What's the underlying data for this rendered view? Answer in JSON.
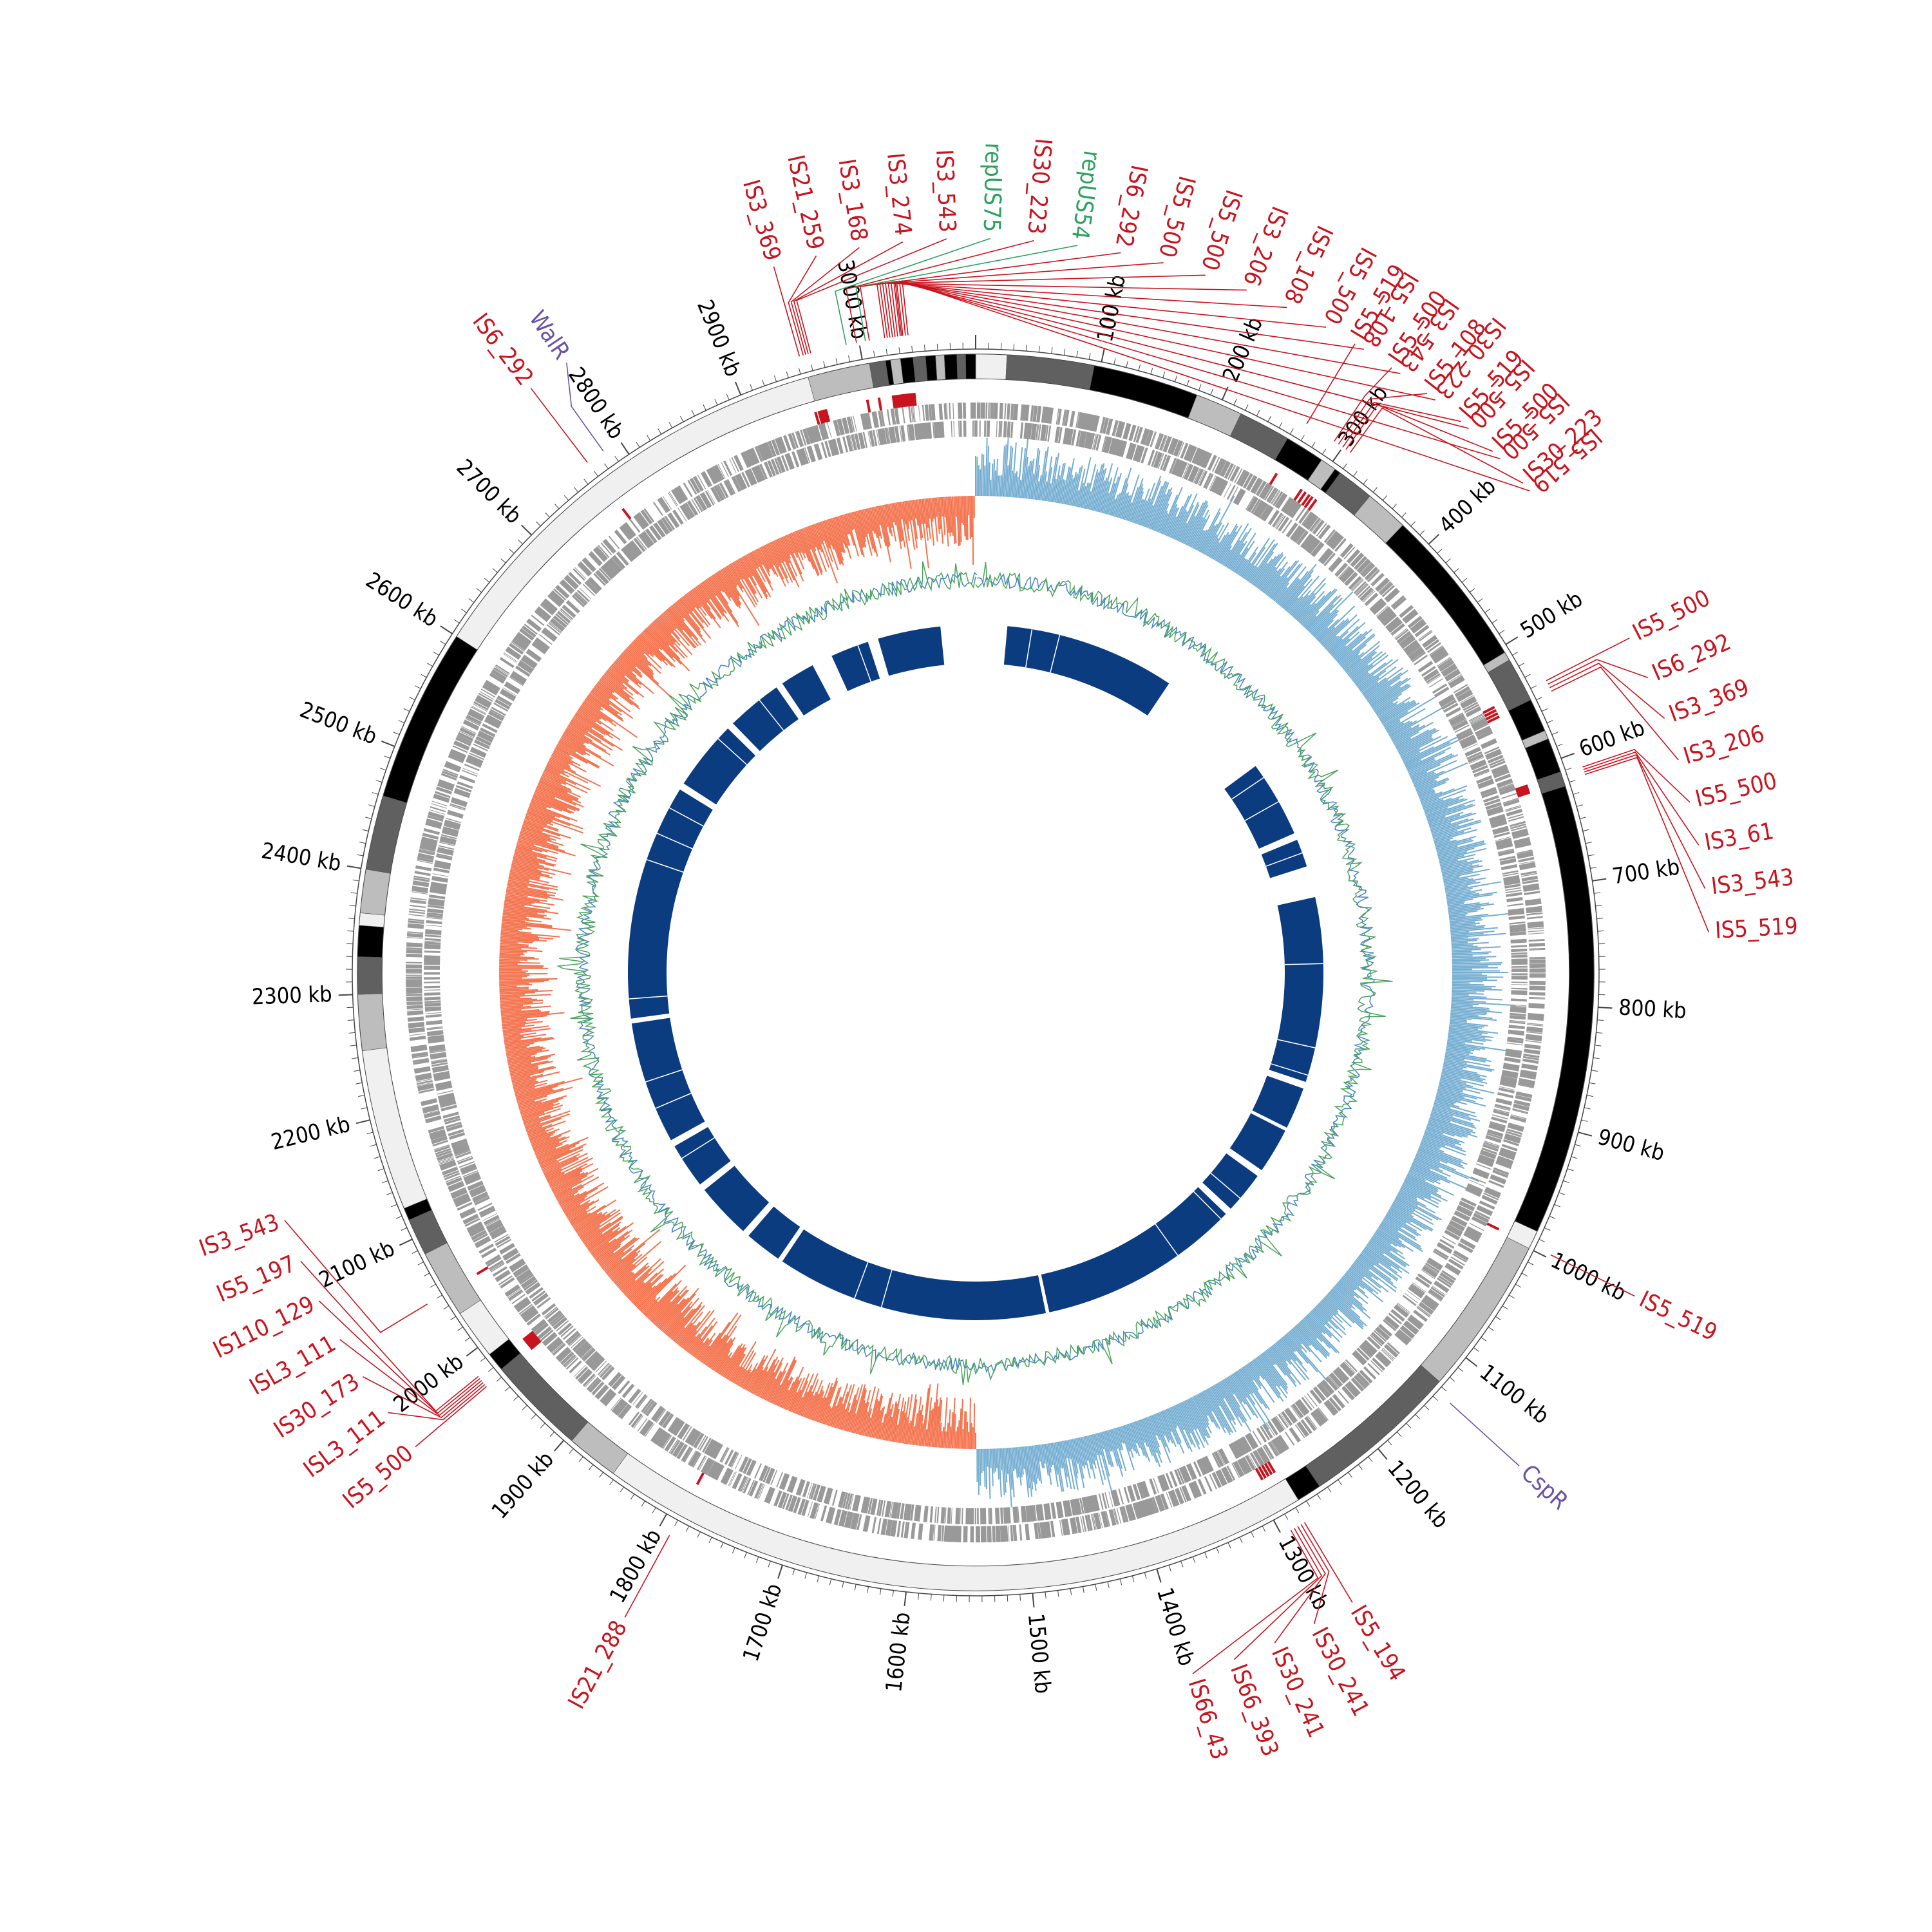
{
  "chart_data": {
    "type": "circular_genome_map",
    "genome_length_kb": 3090,
    "tick_labels": [
      "100 kb",
      "200 kb",
      "300 kb",
      "400 kb",
      "500 kb",
      "600 kb",
      "700 kb",
      "800 kb",
      "900 kb",
      "1000 kb",
      "1100 kb",
      "1200 kb",
      "1300 kb",
      "1400 kb",
      "1500 kb",
      "1600 kb",
      "1700 kb",
      "1800 kb",
      "1900 kb",
      "2000 kb",
      "2100 kb",
      "2200 kb",
      "2300 kb",
      "2400 kb",
      "2500 kb",
      "2600 kb",
      "2700 kb",
      "2800 kb",
      "2900 kb",
      "3000 kb"
    ],
    "contigs": [
      {
        "start": 0,
        "end": 25,
        "shade": "#f0f0f0"
      },
      {
        "start": 25,
        "end": 95,
        "shade": "#606060"
      },
      {
        "start": 95,
        "end": 180,
        "shade": "#000000"
      },
      {
        "start": 180,
        "end": 218,
        "shade": "#bdbdbd"
      },
      {
        "start": 218,
        "end": 260,
        "shade": "#606060"
      },
      {
        "start": 260,
        "end": 292,
        "shade": "#000000"
      },
      {
        "start": 292,
        "end": 305,
        "shade": "#bdbdbd"
      },
      {
        "start": 305,
        "end": 310,
        "shade": "#000000"
      },
      {
        "start": 310,
        "end": 340,
        "shade": "#606060"
      },
      {
        "start": 340,
        "end": 375,
        "shade": "#bdbdbd"
      },
      {
        "start": 375,
        "end": 505,
        "shade": "#000000"
      },
      {
        "start": 505,
        "end": 512,
        "shade": "#bdbdbd"
      },
      {
        "start": 512,
        "end": 548,
        "shade": "#606060"
      },
      {
        "start": 548,
        "end": 575,
        "shade": "#000000"
      },
      {
        "start": 575,
        "end": 582,
        "shade": "#bdbdbd"
      },
      {
        "start": 582,
        "end": 610,
        "shade": "#000000"
      },
      {
        "start": 610,
        "end": 622,
        "shade": "#606060"
      },
      {
        "start": 622,
        "end": 985,
        "shade": "#000000"
      },
      {
        "start": 985,
        "end": 1000,
        "shade": "#f0f0f0"
      },
      {
        "start": 1000,
        "end": 1128,
        "shade": "#bdbdbd"
      },
      {
        "start": 1128,
        "end": 1255,
        "shade": "#606060"
      },
      {
        "start": 1255,
        "end": 1275,
        "shade": "#000000"
      },
      {
        "start": 1275,
        "end": 1853,
        "shade": "#f0f0f0"
      },
      {
        "start": 1853,
        "end": 1895,
        "shade": "#bdbdbd"
      },
      {
        "start": 1895,
        "end": 1975,
        "shade": "#606060"
      },
      {
        "start": 1975,
        "end": 1990,
        "shade": "#000000"
      },
      {
        "start": 1990,
        "end": 2030,
        "shade": "#f0f0f0"
      },
      {
        "start": 2030,
        "end": 2085,
        "shade": "#bdbdbd"
      },
      {
        "start": 2085,
        "end": 2115,
        "shade": "#606060"
      },
      {
        "start": 2115,
        "end": 2125,
        "shade": "#000000"
      },
      {
        "start": 2125,
        "end": 2255,
        "shade": "#f0f0f0"
      },
      {
        "start": 2255,
        "end": 2300,
        "shade": "#bdbdbd"
      },
      {
        "start": 2300,
        "end": 2330,
        "shade": "#606060"
      },
      {
        "start": 2330,
        "end": 2355,
        "shade": "#000000"
      },
      {
        "start": 2355,
        "end": 2365,
        "shade": "#f0f0f0"
      },
      {
        "start": 2365,
        "end": 2400,
        "shade": "#bdbdbd"
      },
      {
        "start": 2400,
        "end": 2460,
        "shade": "#606060"
      },
      {
        "start": 2460,
        "end": 2600,
        "shade": "#000000"
      },
      {
        "start": 2600,
        "end": 2955,
        "shade": "#f0f0f0"
      },
      {
        "start": 2955,
        "end": 3005,
        "shade": "#bdbdbd"
      },
      {
        "start": 3005,
        "end": 3018,
        "shade": "#606060"
      },
      {
        "start": 3018,
        "end": 3022,
        "shade": "#000000"
      },
      {
        "start": 3022,
        "end": 3030,
        "shade": "#bdbdbd"
      },
      {
        "start": 3030,
        "end": 3040,
        "shade": "#000000"
      },
      {
        "start": 3040,
        "end": 3050,
        "shade": "#606060"
      },
      {
        "start": 3050,
        "end": 3058,
        "shade": "#000000"
      },
      {
        "start": 3058,
        "end": 3065,
        "shade": "#bdbdbd"
      },
      {
        "start": 3065,
        "end": 3075,
        "shade": "#000000"
      },
      {
        "start": 3075,
        "end": 3082,
        "shade": "#606060"
      },
      {
        "start": 3082,
        "end": 3090,
        "shade": "#000000"
      }
    ],
    "annotations": [
      {
        "label": "IS3_369",
        "pos": 2953,
        "category": "IS"
      },
      {
        "label": "IS21_259",
        "pos": 2956,
        "category": "IS"
      },
      {
        "label": "IS3_168",
        "pos": 2958,
        "category": "IS"
      },
      {
        "label": "IS3_274",
        "pos": 2960,
        "category": "IS"
      },
      {
        "label": "IS3_543",
        "pos": 2962,
        "category": "IS"
      },
      {
        "label": "repUS75",
        "pos": 2990,
        "category": "rep"
      },
      {
        "label": "IS30_223",
        "pos": 2998,
        "category": "IS"
      },
      {
        "label": "IS6_292",
        "pos": 3008,
        "category": "IS"
      },
      {
        "label": "IS5_500",
        "pos": 3020,
        "category": "IS"
      },
      {
        "label": "IS30_223",
        "pos": 3033,
        "category": "IS"
      },
      {
        "label": "repUS54",
        "pos": 3005,
        "category": "rep"
      },
      {
        "label": "IS5_500",
        "pos": 3022,
        "category": "IS"
      },
      {
        "label": "IS3_206",
        "pos": 3024,
        "category": "IS"
      },
      {
        "label": "IS5_108",
        "pos": 3026,
        "category": "IS"
      },
      {
        "label": "IS5_500",
        "pos": 3028,
        "category": "IS"
      },
      {
        "label": "IS5_108",
        "pos": 3030,
        "category": "IS"
      },
      {
        "label": "IS3_543",
        "pos": 3032,
        "category": "IS"
      },
      {
        "label": "IS5_500",
        "pos": 3034,
        "category": "IS"
      },
      {
        "label": "IS5_500",
        "pos": 3036,
        "category": "IS"
      },
      {
        "label": "IS5_519",
        "pos": 3038,
        "category": "IS"
      },
      {
        "label": "IS5_519",
        "pos": 267,
        "category": "IS"
      },
      {
        "label": "IS5_500",
        "pos": 292,
        "category": "IS"
      },
      {
        "label": "IS5_108",
        "pos": 296,
        "category": "IS"
      },
      {
        "label": "IS5_519",
        "pos": 300,
        "category": "IS"
      },
      {
        "label": "IS5_500",
        "pos": 303,
        "category": "IS"
      },
      {
        "label": "IS30_223",
        "pos": 307,
        "category": "IS"
      },
      {
        "label": "IS5_500",
        "pos": 540,
        "category": "IS"
      },
      {
        "label": "IS6_292",
        "pos": 543,
        "category": "IS"
      },
      {
        "label": "IS3_369",
        "pos": 546,
        "category": "IS"
      },
      {
        "label": "IS3_206",
        "pos": 549,
        "category": "IS"
      },
      {
        "label": "IS5_500",
        "pos": 612,
        "category": "IS"
      },
      {
        "label": "IS3_61",
        "pos": 614,
        "category": "IS"
      },
      {
        "label": "IS3_543",
        "pos": 616,
        "category": "IS"
      },
      {
        "label": "IS5_519",
        "pos": 618,
        "category": "IS"
      },
      {
        "label": "IS5_519",
        "pos": 997,
        "category": "IS"
      },
      {
        "label": "CspR",
        "pos": 1135,
        "category": "regulator"
      },
      {
        "label": "IS5_194",
        "pos": 1280,
        "category": "IS"
      },
      {
        "label": "IS30_241",
        "pos": 1283,
        "category": "IS"
      },
      {
        "label": "IS30_241",
        "pos": 1286,
        "category": "IS"
      },
      {
        "label": "IS66_393",
        "pos": 1289,
        "category": "IS"
      },
      {
        "label": "IS66_43",
        "pos": 1292,
        "category": "IS"
      },
      {
        "label": "IS21_288",
        "pos": 1790,
        "category": "IS"
      },
      {
        "label": "IS5_500",
        "pos": 1972,
        "category": "IS"
      },
      {
        "label": "ISL3_111",
        "pos": 1974,
        "category": "IS"
      },
      {
        "label": "IS30_173",
        "pos": 1976,
        "category": "IS"
      },
      {
        "label": "ISL3_111",
        "pos": 1978,
        "category": "IS"
      },
      {
        "label": "IS110_129",
        "pos": 1980,
        "category": "IS"
      },
      {
        "label": "IS5_197",
        "pos": 1982,
        "category": "IS"
      },
      {
        "label": "IS3_543",
        "pos": 2050,
        "category": "IS"
      },
      {
        "label": "WalR",
        "pos": 2785,
        "category": "regulator"
      },
      {
        "label": "IS6_292",
        "pos": 2770,
        "category": "IS"
      }
    ],
    "inner_blocks": [
      {
        "start": 45,
        "end": 290
      },
      {
        "start": 460,
        "end": 570
      },
      {
        "start": 580,
        "end": 620
      },
      {
        "start": 665,
        "end": 930
      },
      {
        "start": 940,
        "end": 1000
      },
      {
        "start": 1005,
        "end": 1070
      },
      {
        "start": 1080,
        "end": 1140
      },
      {
        "start": 1150,
        "end": 1440
      },
      {
        "start": 1445,
        "end": 1835
      },
      {
        "start": 1842,
        "end": 1895
      },
      {
        "start": 1905,
        "end": 1985
      },
      {
        "start": 1995,
        "end": 2060
      },
      {
        "start": 2070,
        "end": 2245
      },
      {
        "start": 2252,
        "end": 2590
      },
      {
        "start": 2600,
        "end": 2700
      },
      {
        "start": 2710,
        "end": 2790
      },
      {
        "start": 2800,
        "end": 2850
      },
      {
        "start": 2880,
        "end": 2935
      },
      {
        "start": 2950,
        "end": 3040
      }
    ],
    "colors": {
      "is_label": "#c8141e",
      "rep_label": "#2ca25f",
      "regulator_label": "#6a51a3",
      "gc_skew_positive": "#74add1",
      "gc_skew_negative": "#f4744f",
      "gc_content_line": "#4aa35a",
      "gc_content_line_alt": "#4682c8",
      "inner_block": "#0b3c80",
      "gene": "#999999"
    }
  }
}
